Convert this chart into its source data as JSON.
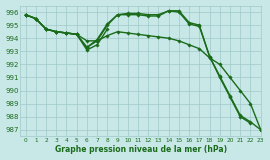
{
  "background_color": "#c8e8e8",
  "grid_color": "#a0c8c8",
  "line_color": "#1a6b1a",
  "title": "Graphe pression niveau de la mer (hPa)",
  "xlim": [
    -0.5,
    23
  ],
  "ylim": [
    986.5,
    996.5
  ],
  "xticks": [
    0,
    1,
    2,
    3,
    4,
    5,
    6,
    7,
    8,
    9,
    10,
    11,
    12,
    13,
    14,
    15,
    16,
    17,
    18,
    19,
    20,
    21,
    22,
    23
  ],
  "yticks": [
    987,
    988,
    989,
    990,
    991,
    992,
    993,
    994,
    995,
    996
  ],
  "series": [
    {
      "x": [
        0,
        1,
        2,
        3,
        4,
        5,
        6,
        7,
        8,
        9,
        10,
        11,
        12,
        13,
        14,
        15,
        16,
        17,
        18,
        19,
        20,
        21,
        22
      ],
      "y": [
        995.8,
        995.5,
        994.7,
        994.5,
        994.4,
        994.3,
        993.3,
        993.8,
        995.0,
        995.8,
        995.9,
        995.9,
        995.8,
        995.8,
        996.1,
        996.1,
        995.2,
        995.0,
        992.6,
        991.0,
        989.5,
        988.0,
        987.5
      ]
    },
    {
      "x": [
        0,
        1,
        2,
        3,
        4,
        5,
        6,
        7,
        8
      ],
      "y": [
        995.8,
        995.5,
        994.7,
        994.5,
        994.4,
        994.3,
        993.1,
        993.5,
        994.7
      ]
    },
    {
      "x": [
        0,
        1,
        2,
        3,
        4,
        5,
        6,
        7,
        8,
        9,
        10,
        11,
        12,
        13,
        14,
        15,
        16,
        17,
        18,
        19,
        20,
        21,
        22,
        23
      ],
      "y": [
        995.8,
        995.5,
        994.7,
        994.5,
        994.4,
        994.3,
        993.8,
        993.8,
        994.2,
        994.5,
        994.4,
        994.3,
        994.2,
        994.1,
        994.0,
        993.8,
        993.5,
        993.2,
        992.5,
        992.0,
        991.0,
        990.0,
        989.0,
        987.0
      ]
    },
    {
      "x": [
        0,
        1,
        2,
        3,
        4,
        5,
        6,
        7,
        8,
        9,
        10,
        11,
        12,
        13,
        14,
        15,
        16,
        17,
        18,
        19,
        20,
        21,
        22,
        23
      ],
      "y": [
        995.8,
        995.5,
        994.7,
        994.5,
        994.4,
        994.3,
        993.3,
        993.9,
        995.1,
        995.8,
        995.8,
        995.8,
        995.7,
        995.7,
        996.1,
        996.0,
        995.1,
        994.9,
        992.6,
        991.1,
        989.6,
        988.1,
        987.6,
        987.0
      ]
    }
  ],
  "marker": "D",
  "markersize": 1.8,
  "linewidth": 1.0,
  "tick_fontsize": 5.0,
  "xlabel_fontsize": 5.5
}
